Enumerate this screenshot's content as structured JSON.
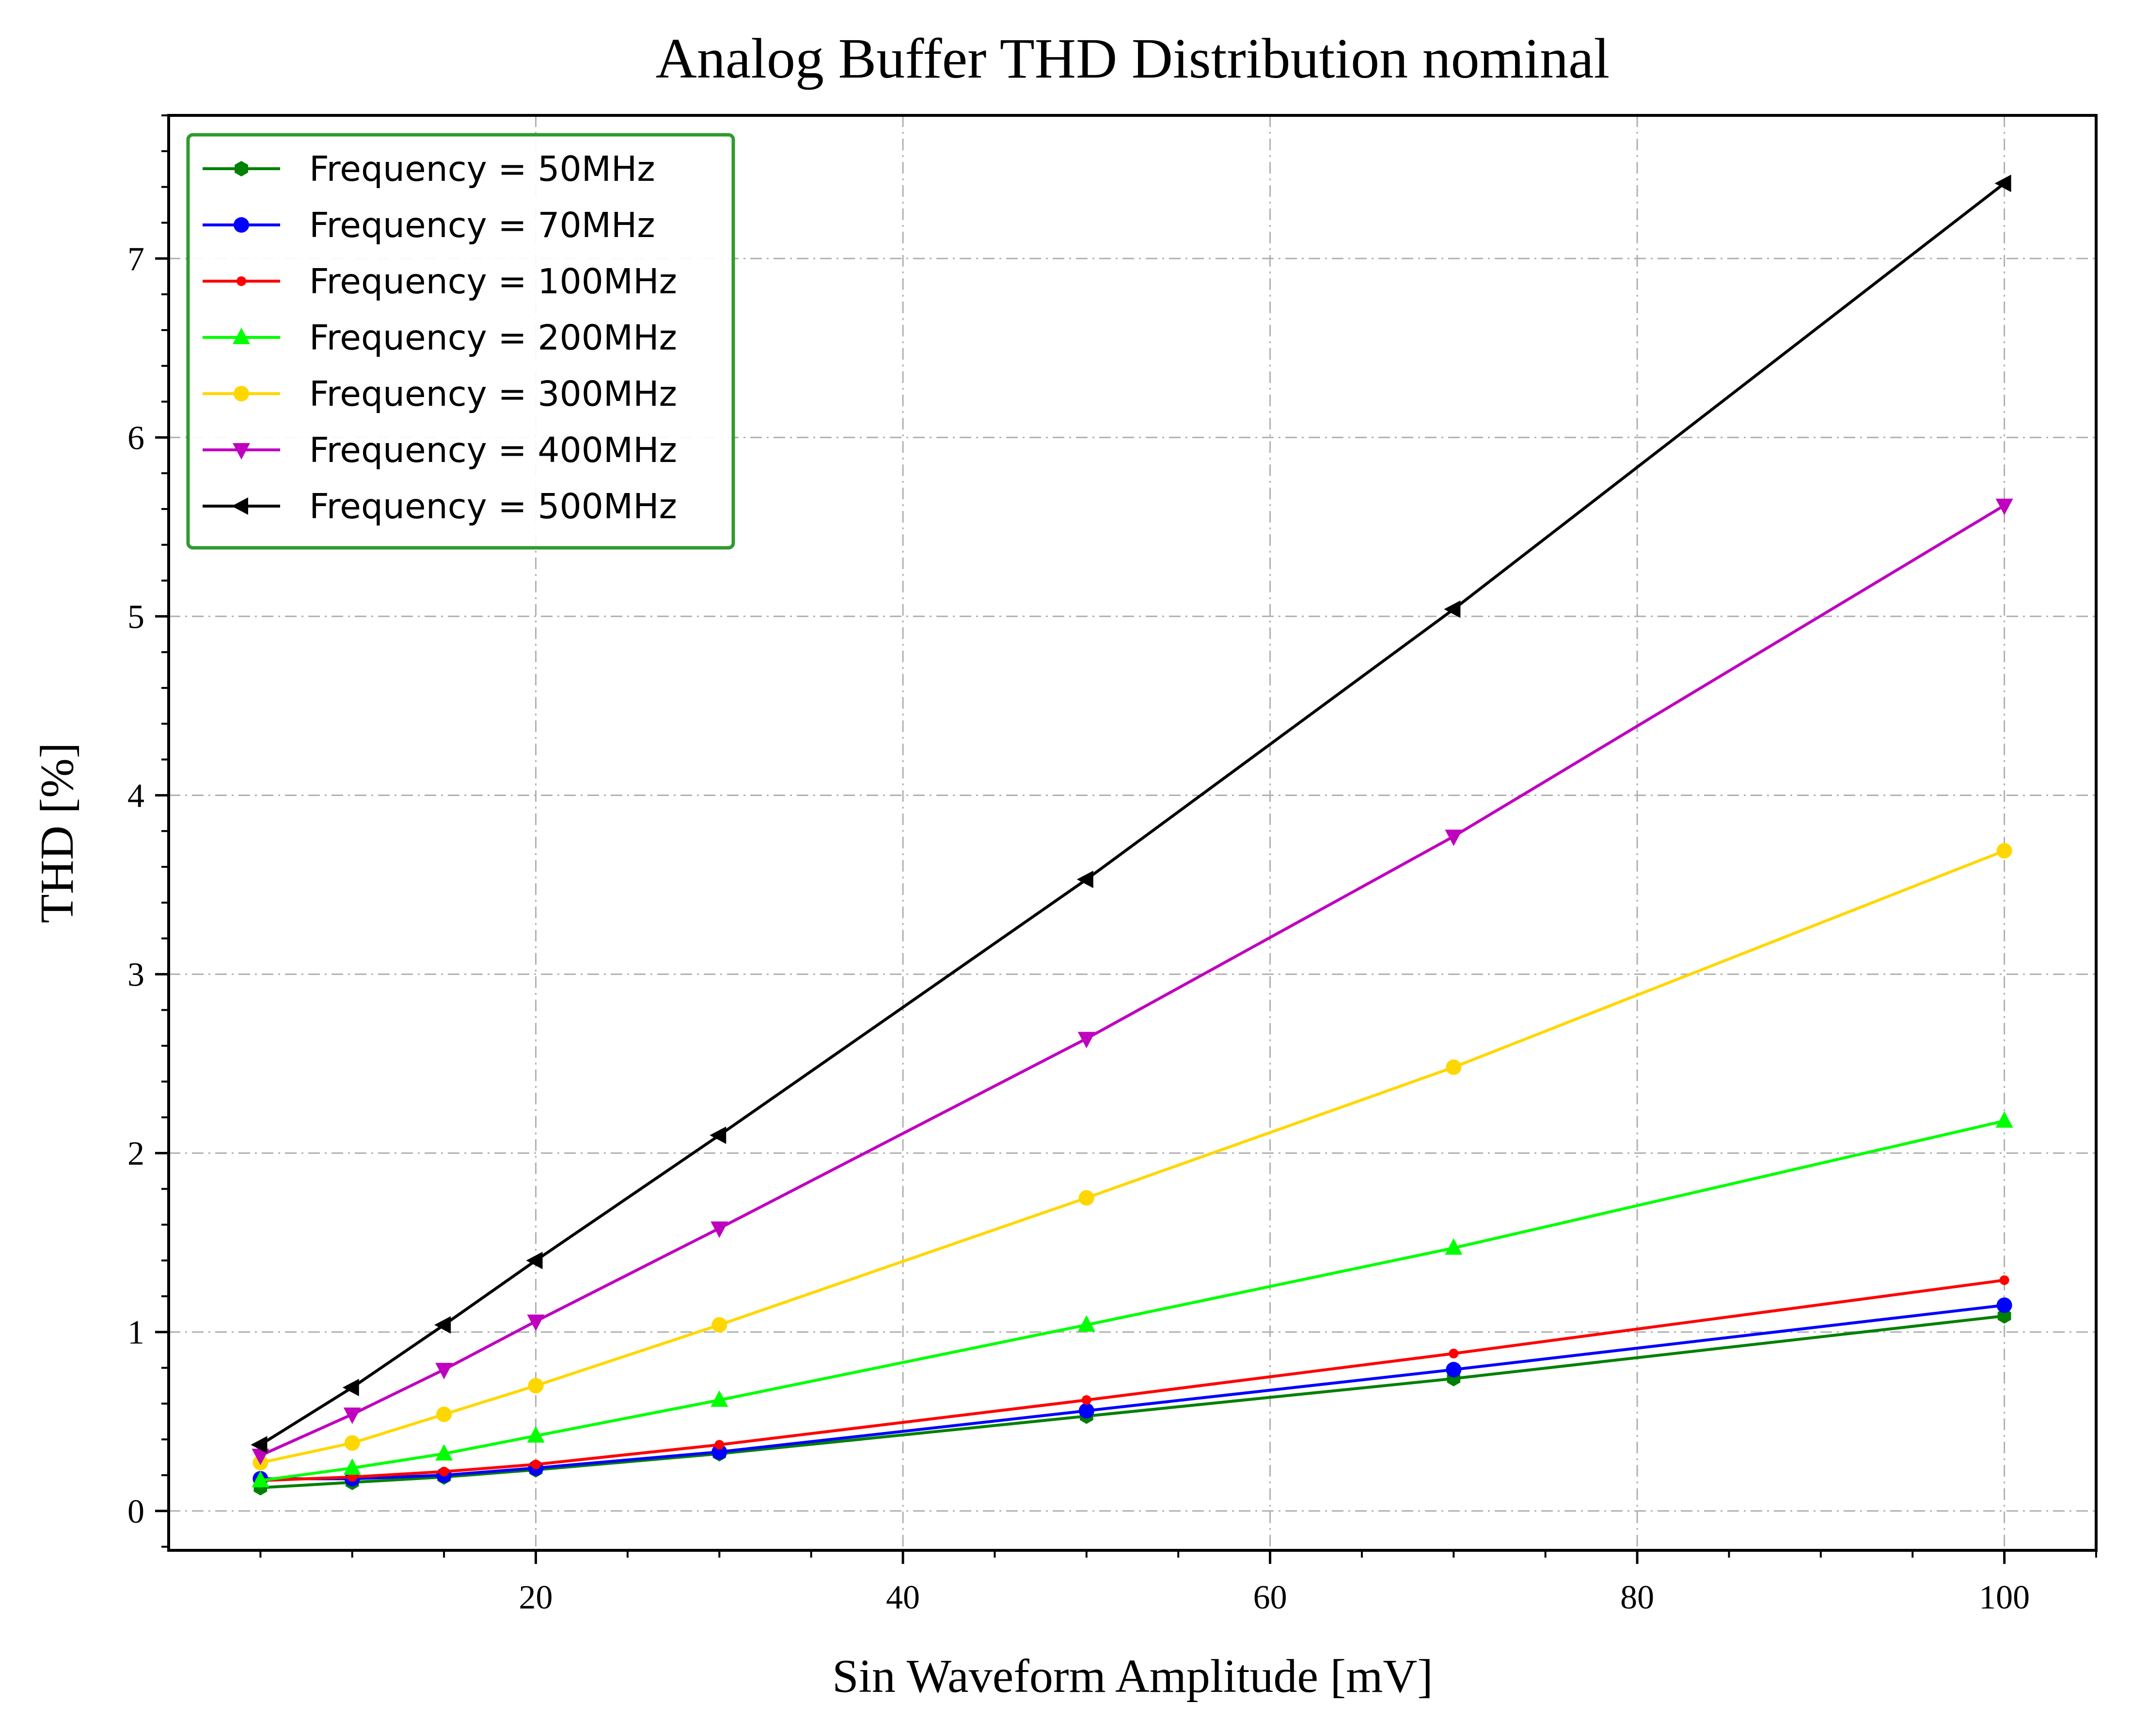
{
  "chart_data": {
    "type": "line",
    "title": "Analog Buffer THD Distribution  nominal",
    "xlabel": "Sin Waveform Amplitude [mV]",
    "ylabel": "THD [%]",
    "x": [
      5,
      10,
      15,
      20,
      30,
      50,
      70,
      100
    ],
    "xlim": [
      0,
      105
    ],
    "ylim": [
      -0.22,
      7.8
    ],
    "xticks": [
      20,
      40,
      60,
      80,
      100
    ],
    "yticks": [
      0,
      1,
      2,
      3,
      4,
      5,
      6,
      7
    ],
    "grid": true,
    "legend_position": "top-left",
    "series": [
      {
        "name": "Frequency = 50MHz",
        "color": "#008000",
        "marker": "hexagon",
        "values": [
          0.13,
          0.16,
          0.19,
          0.23,
          0.32,
          0.53,
          0.74,
          1.09
        ]
      },
      {
        "name": "Frequency = 70MHz",
        "color": "#0000ff",
        "marker": "circle",
        "values": [
          0.18,
          0.18,
          0.2,
          0.24,
          0.33,
          0.56,
          0.79,
          1.15
        ]
      },
      {
        "name": "Frequency = 100MHz",
        "color": "#ff0000",
        "marker": "point",
        "values": [
          0.17,
          0.19,
          0.22,
          0.26,
          0.37,
          0.62,
          0.88,
          1.29
        ]
      },
      {
        "name": "Frequency = 200MHz",
        "color": "#00ff00",
        "marker": "triangle-up",
        "values": [
          0.17,
          0.24,
          0.32,
          0.42,
          0.62,
          1.04,
          1.47,
          2.18
        ]
      },
      {
        "name": "Frequency = 300MHz",
        "color": "#ffd700",
        "marker": "circle",
        "values": [
          0.27,
          0.38,
          0.54,
          0.7,
          1.04,
          1.75,
          2.48,
          3.69
        ]
      },
      {
        "name": "Frequency = 400MHz",
        "color": "#bf00bf",
        "marker": "triangle-down",
        "values": [
          0.31,
          0.54,
          0.79,
          1.06,
          1.58,
          2.64,
          3.77,
          5.62
        ]
      },
      {
        "name": "Frequency = 500MHz",
        "color": "#000000",
        "marker": "triangle-left",
        "values": [
          0.37,
          0.69,
          1.04,
          1.4,
          2.1,
          3.53,
          5.04,
          7.42
        ]
      }
    ]
  }
}
